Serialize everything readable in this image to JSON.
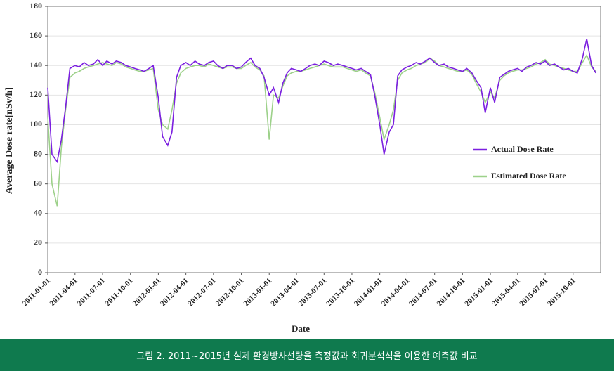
{
  "chart_data": {
    "type": "line",
    "x_label": "Date",
    "y_label": "Average Dose rate[nSv/h]",
    "caption": "그림 2. 2011~2015년 실제 환경방사선량율 측정값과 회귀분석식을 이용한 예측값 비교",
    "x": [
      "2011-01-01",
      "2011-01-15",
      "2011-02-01",
      "2011-02-15",
      "2011-03-01",
      "2011-03-15",
      "2011-04-01",
      "2011-04-15",
      "2011-05-01",
      "2011-05-15",
      "2011-06-01",
      "2011-06-15",
      "2011-07-01",
      "2011-07-15",
      "2011-08-01",
      "2011-08-15",
      "2011-09-01",
      "2011-09-15",
      "2011-10-01",
      "2011-10-15",
      "2011-11-01",
      "2011-11-15",
      "2011-12-01",
      "2011-12-15",
      "2012-01-01",
      "2012-01-15",
      "2012-02-01",
      "2012-02-15",
      "2012-03-01",
      "2012-03-15",
      "2012-04-01",
      "2012-04-15",
      "2012-05-01",
      "2012-05-15",
      "2012-06-01",
      "2012-06-15",
      "2012-07-01",
      "2012-07-15",
      "2012-08-01",
      "2012-08-15",
      "2012-09-01",
      "2012-09-15",
      "2012-10-01",
      "2012-10-15",
      "2012-11-01",
      "2012-11-15",
      "2012-12-01",
      "2012-12-15",
      "2013-01-01",
      "2013-01-15",
      "2013-02-01",
      "2013-02-15",
      "2013-03-01",
      "2013-03-15",
      "2013-04-01",
      "2013-04-15",
      "2013-05-01",
      "2013-05-15",
      "2013-06-01",
      "2013-06-15",
      "2013-07-01",
      "2013-07-15",
      "2013-08-01",
      "2013-08-15",
      "2013-09-01",
      "2013-09-15",
      "2013-10-01",
      "2013-10-15",
      "2013-11-01",
      "2013-11-15",
      "2013-12-01",
      "2013-12-15",
      "2014-01-01",
      "2014-01-15",
      "2014-02-01",
      "2014-02-15",
      "2014-03-01",
      "2014-03-15",
      "2014-04-01",
      "2014-04-15",
      "2014-05-01",
      "2014-05-15",
      "2014-06-01",
      "2014-06-15",
      "2014-07-01",
      "2014-07-15",
      "2014-08-01",
      "2014-08-15",
      "2014-09-01",
      "2014-09-15",
      "2014-10-01",
      "2014-10-15",
      "2014-11-01",
      "2014-11-15",
      "2014-12-01",
      "2014-12-15",
      "2015-01-01",
      "2015-01-15",
      "2015-02-01",
      "2015-02-15",
      "2015-03-01",
      "2015-03-15",
      "2015-04-01",
      "2015-04-15",
      "2015-05-01",
      "2015-05-15",
      "2015-06-01",
      "2015-06-15",
      "2015-07-01",
      "2015-07-15",
      "2015-08-01",
      "2015-08-15",
      "2015-09-01",
      "2015-09-15",
      "2015-10-01",
      "2015-10-15",
      "2015-11-01",
      "2015-11-15",
      "2015-12-01",
      "2015-12-15"
    ],
    "series": [
      {
        "name": "Actual Dose Rate",
        "color": "#7b1fe0",
        "values": [
          125,
          80,
          75,
          90,
          112,
          138,
          140,
          139,
          142,
          140,
          141,
          144,
          140,
          143,
          141,
          143,
          142,
          140,
          139,
          138,
          137,
          136,
          138,
          140,
          118,
          92,
          86,
          95,
          132,
          140,
          142,
          140,
          143,
          141,
          140,
          142,
          143,
          140,
          138,
          140,
          140,
          138,
          139,
          142,
          145,
          140,
          138,
          132,
          120,
          125,
          115,
          128,
          135,
          138,
          137,
          136,
          138,
          140,
          141,
          140,
          143,
          142,
          140,
          141,
          140,
          139,
          138,
          137,
          138,
          136,
          134,
          120,
          100,
          80,
          95,
          100,
          133,
          137,
          139,
          140,
          142,
          141,
          143,
          145,
          142,
          140,
          141,
          139,
          138,
          137,
          136,
          138,
          135,
          130,
          125,
          108,
          125,
          115,
          132,
          134,
          136,
          137,
          138,
          136,
          139,
          140,
          142,
          141,
          143,
          140,
          141,
          139,
          137,
          138,
          136,
          135,
          145,
          158,
          140,
          135
        ]
      },
      {
        "name": "Estimated Dose Rate",
        "color": "#9dd18a",
        "values": [
          105,
          60,
          45,
          85,
          110,
          132,
          135,
          136,
          138,
          139,
          140,
          141,
          142,
          141,
          140,
          142,
          141,
          139,
          138,
          137,
          136,
          136,
          137,
          138,
          110,
          100,
          97,
          110,
          128,
          135,
          138,
          139,
          140,
          140,
          139,
          141,
          140,
          139,
          138,
          139,
          139,
          138,
          138,
          140,
          142,
          139,
          137,
          133,
          90,
          120,
          118,
          126,
          133,
          135,
          136,
          136,
          137,
          138,
          139,
          140,
          141,
          140,
          139,
          139,
          139,
          138,
          137,
          136,
          137,
          135,
          133,
          122,
          105,
          90,
          100,
          110,
          130,
          135,
          137,
          138,
          140,
          141,
          142,
          145,
          143,
          140,
          139,
          138,
          137,
          136,
          136,
          137,
          134,
          128,
          122,
          115,
          122,
          118,
          130,
          133,
          135,
          136,
          137,
          137,
          138,
          139,
          141,
          142,
          144,
          141,
          140,
          139,
          138,
          137,
          136,
          136,
          142,
          147,
          139,
          136
        ]
      }
    ],
    "xlim": [
      "2011-01-01",
      "2015-12-31"
    ],
    "xticks": [
      "2011-01-01",
      "2011-04-01",
      "2011-07-01",
      "2011-10-01",
      "2012-01-01",
      "2012-04-01",
      "2012-07-01",
      "2012-10-01",
      "2013-01-01",
      "2013-04-01",
      "2013-07-01",
      "2013-10-01",
      "2014-01-01",
      "2014-04-01",
      "2014-07-01",
      "2014-10-01",
      "2015-01-01",
      "2015-04-01",
      "2015-07-01",
      "2015-10-01"
    ],
    "ylim": [
      0,
      180
    ],
    "yticks": [
      0,
      20,
      40,
      60,
      80,
      100,
      120,
      140,
      160,
      180
    ],
    "grid": true,
    "legend": "center right"
  }
}
